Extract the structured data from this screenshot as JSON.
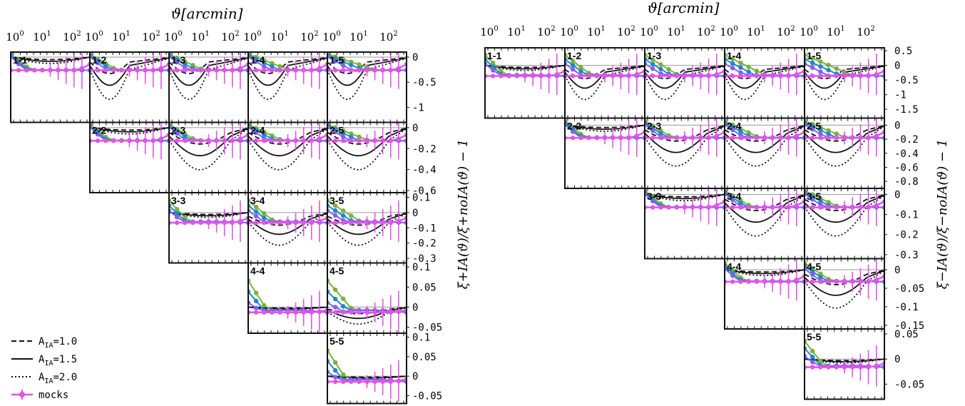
{
  "chart_data": [
    {
      "type": "line",
      "name": "xi_plus_panel",
      "xlabel": "ϑ[arcmin]",
      "ylabel": "ξ+IA(ϑ)/ξ+noIA(ϑ) − 1",
      "x_scale": "log",
      "xlim": [
        1,
        300
      ],
      "x_tick_labels": [
        "10^0",
        "10^1",
        "10^2"
      ],
      "bins": [
        "1-1",
        "1-2",
        "1-3",
        "1-4",
        "1-5",
        "2-2",
        "2-3",
        "2-4",
        "2-5",
        "3-3",
        "3-4",
        "3-5",
        "4-4",
        "4-5",
        "5-5"
      ],
      "rows": [
        {
          "ylim": [
            -1.3,
            0.1
          ],
          "ticks": [
            0,
            -0.5,
            -1
          ],
          "tick_labels": [
            "0",
            "-0.5",
            "-1"
          ]
        },
        {
          "ylim": [
            -0.62,
            0.05
          ],
          "ticks": [
            0,
            -0.2,
            -0.4,
            -0.6
          ],
          "tick_labels": [
            "0",
            "-0.2",
            "-0.4",
            "-0.6"
          ]
        },
        {
          "ylim": [
            -0.33,
            0.13
          ],
          "ticks": [
            0.1,
            0,
            -0.1,
            -0.2,
            -0.3
          ],
          "tick_labels": [
            "0.1",
            "0",
            "-0.1",
            "-0.2",
            "-0.3"
          ]
        },
        {
          "ylim": [
            -0.065,
            0.11
          ],
          "ticks": [
            0.1,
            0.05,
            0,
            -0.05
          ],
          "tick_labels": [
            "0.1",
            "0.05",
            "0",
            "-0.05"
          ]
        },
        {
          "ylim": [
            -0.07,
            0.11
          ],
          "ticks": [
            0.1,
            0.05,
            0,
            -0.05
          ],
          "tick_labels": [
            "0.1",
            "0.05",
            "0",
            "-0.05"
          ]
        }
      ],
      "legend": {
        "placement": "bottom-left",
        "entries": [
          {
            "label": "A",
            "sub": "IA",
            "value": "=1.0",
            "style": "dashed"
          },
          {
            "label": "A",
            "sub": "IA",
            "value": "=1.5",
            "style": "solid"
          },
          {
            "label": "A",
            "sub": "IA",
            "value": "=2.0",
            "style": "dotted"
          },
          {
            "label": "mocks",
            "sub": "",
            "value": "",
            "style": "points-errorbars"
          }
        ]
      }
    },
    {
      "type": "line",
      "name": "xi_minus_panel",
      "xlabel": "ϑ[arcmin]",
      "ylabel": "ξ−IA(ϑ)/ξ−noIA(ϑ) − 1",
      "x_scale": "log",
      "xlim": [
        1,
        300
      ],
      "x_tick_labels": [
        "10^0",
        "10^1",
        "10^2"
      ],
      "bins": [
        "1-1",
        "1-2",
        "1-3",
        "1-4",
        "1-5",
        "2-2",
        "2-3",
        "2-4",
        "2-5",
        "3-3",
        "3-4",
        "3-5",
        "4-4",
        "4-5",
        "5-5"
      ],
      "rows": [
        {
          "ylim": [
            -1.8,
            0.6
          ],
          "ticks": [
            0.5,
            0,
            -0.5,
            -1,
            -1.5
          ],
          "tick_labels": [
            "0.5",
            "0",
            "-0.5",
            "-1",
            "-1.5"
          ]
        },
        {
          "ylim": [
            -0.9,
            0.1
          ],
          "ticks": [
            0,
            -0.2,
            -0.4,
            -0.6,
            -0.8
          ],
          "tick_labels": [
            "0",
            "-0.2",
            "-0.4",
            "-0.6",
            "-0.8"
          ]
        },
        {
          "ylim": [
            -0.32,
            0.03
          ],
          "ticks": [
            0,
            -0.1,
            -0.2,
            -0.3
          ],
          "tick_labels": [
            "0",
            "-0.1",
            "-0.2",
            "-0.3"
          ]
        },
        {
          "ylim": [
            -0.16,
            0.03
          ],
          "ticks": [
            0,
            -0.05,
            -0.1,
            -0.15
          ],
          "tick_labels": [
            "0",
            "-0.05",
            "-0.1",
            "-0.15"
          ]
        },
        {
          "ylim": [
            -0.08,
            0.06
          ],
          "ticks": [
            0.05,
            0,
            -0.05
          ],
          "tick_labels": [
            "0.05",
            "0",
            "-0.05"
          ]
        }
      ]
    }
  ]
}
